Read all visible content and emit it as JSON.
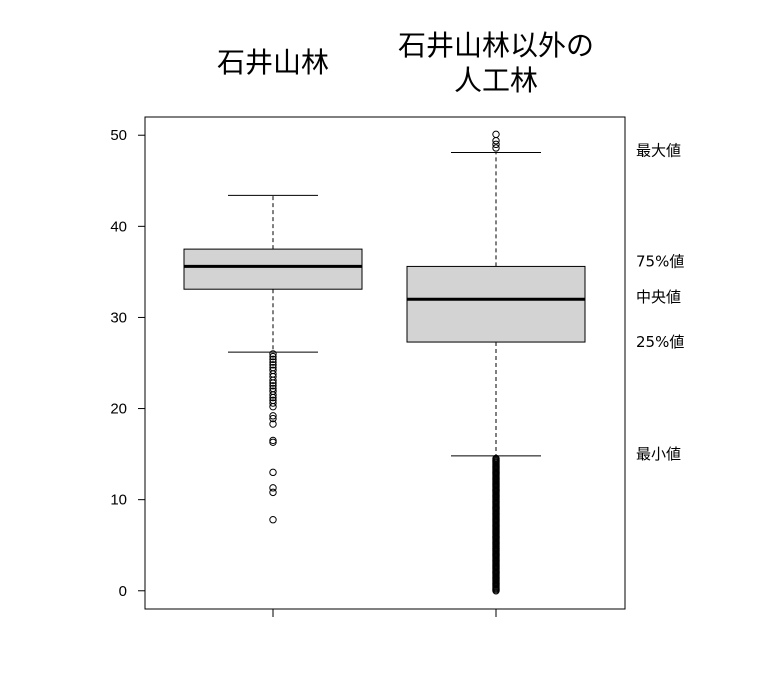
{
  "chart_data": {
    "type": "boxplot",
    "title": "",
    "xlabel": "",
    "ylabel": "",
    "ylim": [
      -2,
      52
    ],
    "yticks": [
      0,
      10,
      20,
      30,
      40,
      50
    ],
    "categories": [
      {
        "lines": [
          "石井山林"
        ]
      },
      {
        "lines": [
          "石井山林以外の",
          "人工林"
        ]
      }
    ],
    "boxes": [
      {
        "whisker_low": 26.2,
        "q1": 33.1,
        "median": 35.6,
        "q3": 37.5,
        "whisker_high": 43.4,
        "outliers": [
          26.0,
          25.7,
          25.4,
          25.1,
          24.8,
          24.5,
          24.2,
          23.8,
          23.5,
          23.1,
          22.8,
          22.5,
          22.2,
          21.9,
          21.5,
          21.2,
          20.9,
          20.6,
          20.2,
          19.2,
          18.9,
          18.3,
          16.5,
          16.3,
          13.0,
          11.3,
          10.8,
          7.8
        ]
      },
      {
        "whisker_low": 14.8,
        "q1": 27.3,
        "median": 32.0,
        "q3": 35.6,
        "whisker_high": 48.1,
        "outliers_range": [
          0.0,
          14.6
        ],
        "outliers": [
          48.6,
          49.0,
          49.4,
          50.1
        ]
      }
    ],
    "annotations": [
      {
        "text": "最大値",
        "y": 48.1
      },
      {
        "text": "75%値",
        "y": 35.6
      },
      {
        "text": "中央値",
        "y": 32.0
      },
      {
        "text": "25%値",
        "y": 27.3
      },
      {
        "text": "最小値",
        "y": 14.8
      }
    ],
    "box_fill": "#d3d3d3",
    "grid": false,
    "legend": "none"
  }
}
